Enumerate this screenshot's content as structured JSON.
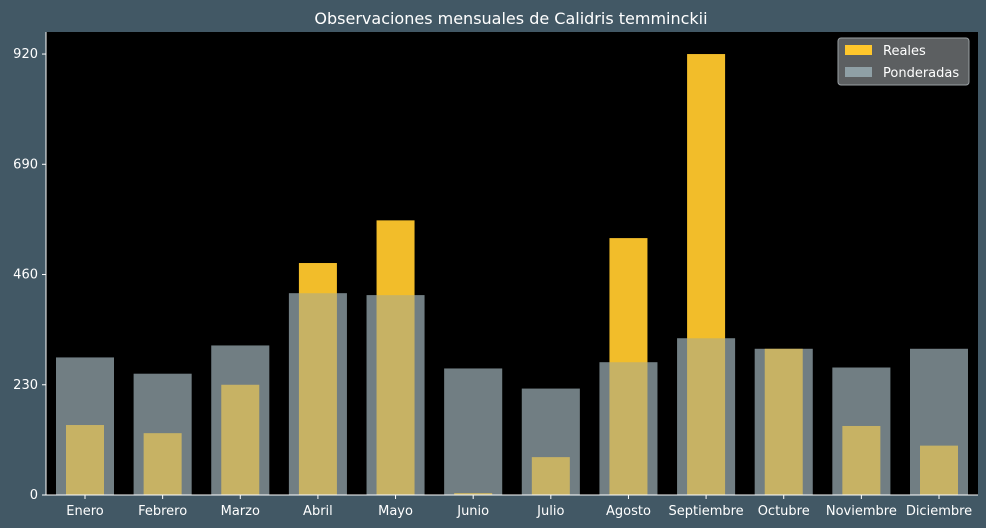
{
  "chart_data": {
    "type": "bar",
    "title": "Observaciones mensuales de Calidris temminckii",
    "xlabel": "",
    "ylabel": "",
    "categories": [
      "Enero",
      "Febrero",
      "Marzo",
      "Abril",
      "Mayo",
      "Junio",
      "Julio",
      "Agosto",
      "Septiembre",
      "Octubre",
      "Noviembre",
      "Diciembre"
    ],
    "series": [
      {
        "name": "Reales",
        "color": "#ffc72c",
        "values": [
          146,
          129,
          230,
          484,
          573,
          4,
          79,
          536,
          920,
          305,
          144,
          103
        ]
      },
      {
        "name": "Ponderadas",
        "color": "#8fa0a6",
        "values": [
          287,
          253,
          312,
          421,
          417,
          264,
          222,
          277,
          327,
          305,
          266,
          305
        ]
      }
    ],
    "yticks": [
      0,
      230,
      460,
      690,
      920
    ],
    "ylim": [
      0,
      966
    ],
    "grid": false,
    "legend": "top-right",
    "plot_background": "#000000",
    "figure_background": "#425865"
  }
}
